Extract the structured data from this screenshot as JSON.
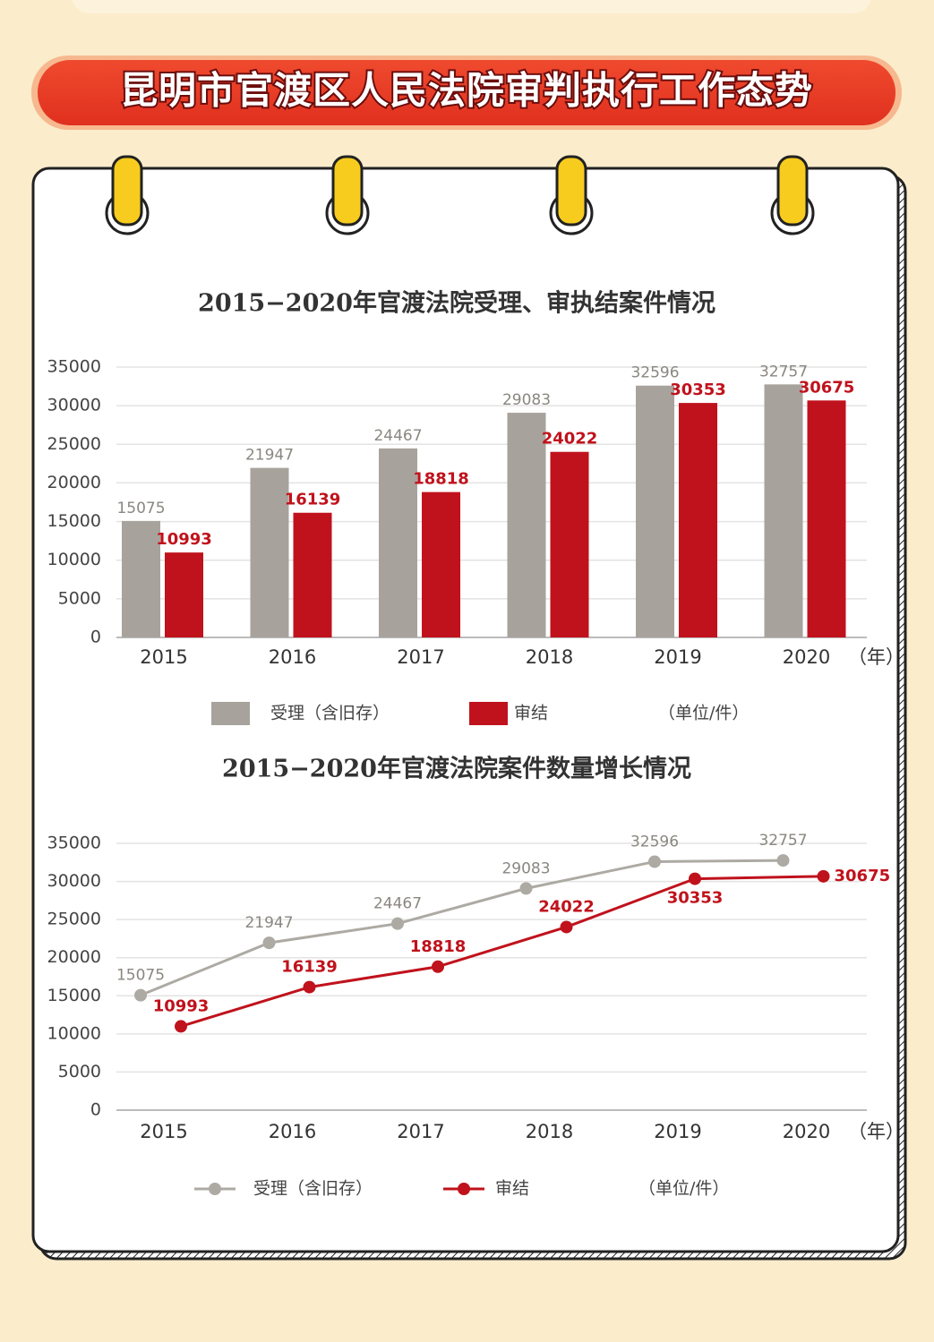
{
  "header": {
    "title": "昆明市官渡区人民法院审判执行工作态势"
  },
  "chart_data": [
    {
      "type": "bar",
      "title": "2015−2020年官渡法院受理、审执结案件情况",
      "categories": [
        "2015",
        "2016",
        "2017",
        "2018",
        "2019",
        "2020"
      ],
      "x_unit": "（年）",
      "series": [
        {
          "name": "受理（含旧存）",
          "color": "#a7a39c",
          "values": [
            15075,
            21947,
            24467,
            29083,
            32596,
            32757
          ]
        },
        {
          "name": "审结",
          "color": "#c0121c",
          "values": [
            10993,
            16139,
            18818,
            24022,
            30353,
            30675
          ]
        }
      ],
      "unit_note": "（单位/件）",
      "ylim": [
        0,
        35000
      ],
      "yticks": [
        0,
        5000,
        10000,
        15000,
        20000,
        25000,
        30000,
        35000
      ],
      "grid": true
    },
    {
      "type": "line",
      "title": "2015−2020年官渡法院案件数量增长情况",
      "categories": [
        "2015",
        "2016",
        "2017",
        "2018",
        "2019",
        "2020"
      ],
      "x_unit": "（年）",
      "series": [
        {
          "name": "受理（含旧存）",
          "color": "#adaaa3",
          "values": [
            15075,
            21947,
            24467,
            29083,
            32596,
            32757
          ]
        },
        {
          "name": "审结",
          "color": "#c0121c",
          "values": [
            10993,
            16139,
            18818,
            24022,
            30353,
            30675
          ]
        }
      ],
      "unit_note": "（单位/件）",
      "ylim": [
        0,
        35000
      ],
      "yticks": [
        0,
        5000,
        10000,
        15000,
        20000,
        25000,
        30000,
        35000
      ],
      "grid": true
    }
  ]
}
